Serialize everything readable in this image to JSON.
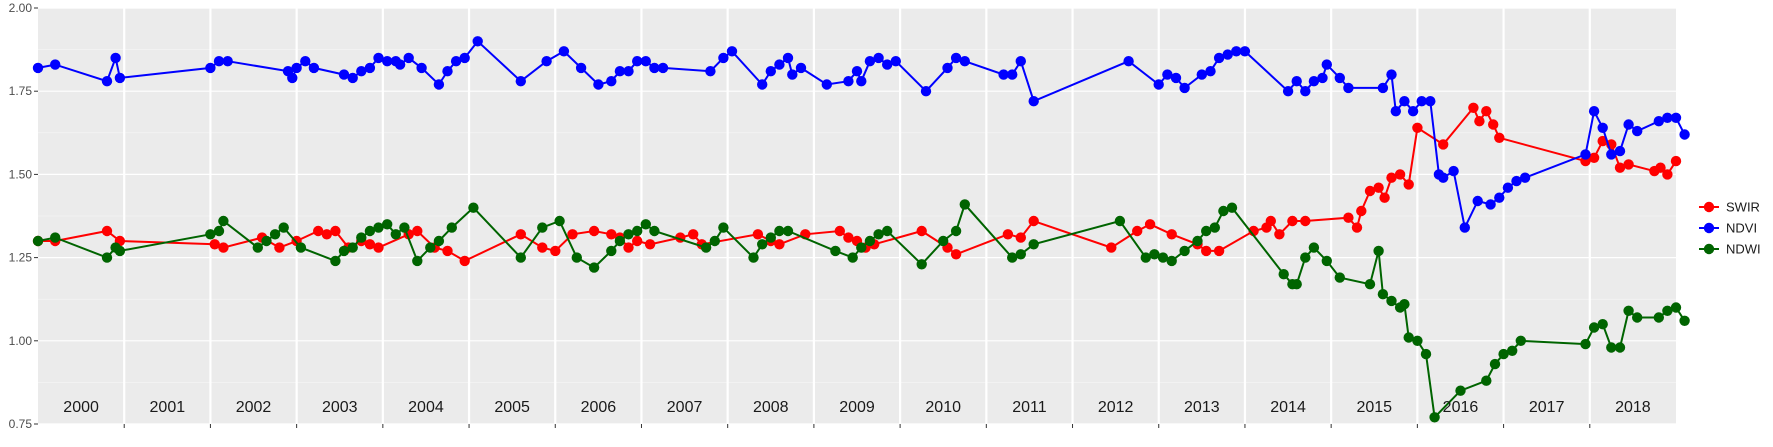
{
  "chart_data": {
    "type": "line",
    "title": "",
    "xlabel": "",
    "ylabel": "",
    "xlim": [
      2000.0,
      2019.0
    ],
    "ylim": [
      0.75,
      2.0
    ],
    "y_ticks": [
      "0.75",
      "1.00",
      "1.25",
      "1.50",
      "1.75",
      "2.00"
    ],
    "grid": true,
    "legend_position": "right",
    "years": [
      "2000",
      "2001",
      "2002",
      "2003",
      "2004",
      "2005",
      "2006",
      "2007",
      "2008",
      "2009",
      "2010",
      "2011",
      "2012",
      "2013",
      "2014",
      "2015",
      "2016",
      "2017",
      "2018"
    ],
    "series": [
      {
        "name": "SWIR",
        "color": "#ff0000",
        "points": [
          [
            2000.0,
            1.3
          ],
          [
            2000.2,
            1.3
          ],
          [
            2000.8,
            1.33
          ],
          [
            2000.95,
            1.3
          ],
          [
            2002.05,
            1.29
          ],
          [
            2002.15,
            1.28
          ],
          [
            2002.6,
            1.31
          ],
          [
            2002.8,
            1.28
          ],
          [
            2003.0,
            1.3
          ],
          [
            2003.25,
            1.33
          ],
          [
            2003.35,
            1.32
          ],
          [
            2003.45,
            1.33
          ],
          [
            2003.6,
            1.28
          ],
          [
            2003.75,
            1.3
          ],
          [
            2003.85,
            1.29
          ],
          [
            2003.95,
            1.28
          ],
          [
            2004.3,
            1.32
          ],
          [
            2004.4,
            1.33
          ],
          [
            2004.6,
            1.28
          ],
          [
            2004.75,
            1.27
          ],
          [
            2004.95,
            1.24
          ],
          [
            2005.6,
            1.32
          ],
          [
            2005.85,
            1.28
          ],
          [
            2006.0,
            1.27
          ],
          [
            2006.2,
            1.32
          ],
          [
            2006.45,
            1.33
          ],
          [
            2006.65,
            1.32
          ],
          [
            2006.75,
            1.31
          ],
          [
            2006.85,
            1.28
          ],
          [
            2006.95,
            1.3
          ],
          [
            2007.1,
            1.29
          ],
          [
            2007.45,
            1.31
          ],
          [
            2007.6,
            1.32
          ],
          [
            2007.7,
            1.29
          ],
          [
            2008.35,
            1.32
          ],
          [
            2008.5,
            1.3
          ],
          [
            2008.6,
            1.29
          ],
          [
            2008.9,
            1.32
          ],
          [
            2009.3,
            1.33
          ],
          [
            2009.4,
            1.31
          ],
          [
            2009.5,
            1.3
          ],
          [
            2009.6,
            1.28
          ],
          [
            2009.7,
            1.29
          ],
          [
            2010.25,
            1.33
          ],
          [
            2010.55,
            1.28
          ],
          [
            2010.65,
            1.26
          ],
          [
            2011.25,
            1.32
          ],
          [
            2011.4,
            1.31
          ],
          [
            2011.55,
            1.36
          ],
          [
            2012.45,
            1.28
          ],
          [
            2012.75,
            1.33
          ],
          [
            2012.9,
            1.35
          ],
          [
            2013.15,
            1.32
          ],
          [
            2013.45,
            1.29
          ],
          [
            2013.55,
            1.27
          ],
          [
            2013.7,
            1.27
          ],
          [
            2014.1,
            1.33
          ],
          [
            2014.25,
            1.34
          ],
          [
            2014.3,
            1.36
          ],
          [
            2014.4,
            1.32
          ],
          [
            2014.55,
            1.36
          ],
          [
            2014.7,
            1.36
          ],
          [
            2015.2,
            1.37
          ],
          [
            2015.3,
            1.34
          ],
          [
            2015.35,
            1.39
          ],
          [
            2015.45,
            1.45
          ],
          [
            2015.55,
            1.46
          ],
          [
            2015.62,
            1.43
          ],
          [
            2015.7,
            1.49
          ],
          [
            2015.8,
            1.5
          ],
          [
            2015.9,
            1.47
          ],
          [
            2016.0,
            1.64
          ],
          [
            2016.3,
            1.59
          ],
          [
            2016.65,
            1.7
          ],
          [
            2016.72,
            1.66
          ],
          [
            2016.8,
            1.69
          ],
          [
            2016.88,
            1.65
          ],
          [
            2016.95,
            1.61
          ],
          [
            2017.95,
            1.54
          ],
          [
            2018.05,
            1.55
          ],
          [
            2018.15,
            1.6
          ],
          [
            2018.25,
            1.59
          ],
          [
            2018.35,
            1.52
          ],
          [
            2018.45,
            1.53
          ],
          [
            2018.75,
            1.51
          ],
          [
            2018.82,
            1.52
          ],
          [
            2018.9,
            1.5
          ],
          [
            2019.0,
            1.54
          ]
        ]
      },
      {
        "name": "NDVI",
        "color": "#0000ff",
        "points": [
          [
            2000.0,
            1.82
          ],
          [
            2000.2,
            1.83
          ],
          [
            2000.8,
            1.78
          ],
          [
            2000.9,
            1.85
          ],
          [
            2000.95,
            1.79
          ],
          [
            2002.0,
            1.82
          ],
          [
            2002.1,
            1.84
          ],
          [
            2002.2,
            1.84
          ],
          [
            2002.9,
            1.81
          ],
          [
            2002.95,
            1.79
          ],
          [
            2003.0,
            1.82
          ],
          [
            2003.1,
            1.84
          ],
          [
            2003.2,
            1.82
          ],
          [
            2003.55,
            1.8
          ],
          [
            2003.65,
            1.79
          ],
          [
            2003.75,
            1.81
          ],
          [
            2003.85,
            1.82
          ],
          [
            2003.95,
            1.85
          ],
          [
            2004.05,
            1.84
          ],
          [
            2004.15,
            1.84
          ],
          [
            2004.2,
            1.83
          ],
          [
            2004.3,
            1.85
          ],
          [
            2004.45,
            1.82
          ],
          [
            2004.65,
            1.77
          ],
          [
            2004.75,
            1.81
          ],
          [
            2004.85,
            1.84
          ],
          [
            2004.95,
            1.85
          ],
          [
            2005.1,
            1.9
          ],
          [
            2005.6,
            1.78
          ],
          [
            2005.9,
            1.84
          ],
          [
            2006.1,
            1.87
          ],
          [
            2006.3,
            1.82
          ],
          [
            2006.5,
            1.77
          ],
          [
            2006.65,
            1.78
          ],
          [
            2006.75,
            1.81
          ],
          [
            2006.85,
            1.81
          ],
          [
            2006.95,
            1.84
          ],
          [
            2007.05,
            1.84
          ],
          [
            2007.15,
            1.82
          ],
          [
            2007.25,
            1.82
          ],
          [
            2007.8,
            1.81
          ],
          [
            2007.95,
            1.85
          ],
          [
            2008.05,
            1.87
          ],
          [
            2008.4,
            1.77
          ],
          [
            2008.5,
            1.81
          ],
          [
            2008.6,
            1.83
          ],
          [
            2008.7,
            1.85
          ],
          [
            2008.75,
            1.8
          ],
          [
            2008.85,
            1.82
          ],
          [
            2009.15,
            1.77
          ],
          [
            2009.4,
            1.78
          ],
          [
            2009.5,
            1.81
          ],
          [
            2009.55,
            1.78
          ],
          [
            2009.65,
            1.84
          ],
          [
            2009.75,
            1.85
          ],
          [
            2009.85,
            1.83
          ],
          [
            2009.95,
            1.84
          ],
          [
            2010.3,
            1.75
          ],
          [
            2010.55,
            1.82
          ],
          [
            2010.65,
            1.85
          ],
          [
            2010.75,
            1.84
          ],
          [
            2011.2,
            1.8
          ],
          [
            2011.3,
            1.8
          ],
          [
            2011.4,
            1.84
          ],
          [
            2011.55,
            1.72
          ],
          [
            2012.65,
            1.84
          ],
          [
            2013.0,
            1.77
          ],
          [
            2013.1,
            1.8
          ],
          [
            2013.2,
            1.79
          ],
          [
            2013.3,
            1.76
          ],
          [
            2013.5,
            1.8
          ],
          [
            2013.6,
            1.81
          ],
          [
            2013.7,
            1.85
          ],
          [
            2013.8,
            1.86
          ],
          [
            2013.9,
            1.87
          ],
          [
            2014.0,
            1.87
          ],
          [
            2014.5,
            1.75
          ],
          [
            2014.6,
            1.78
          ],
          [
            2014.7,
            1.75
          ],
          [
            2014.8,
            1.78
          ],
          [
            2014.9,
            1.79
          ],
          [
            2014.95,
            1.83
          ],
          [
            2015.1,
            1.79
          ],
          [
            2015.2,
            1.76
          ],
          [
            2015.6,
            1.76
          ],
          [
            2015.7,
            1.8
          ],
          [
            2015.75,
            1.69
          ],
          [
            2015.85,
            1.72
          ],
          [
            2015.95,
            1.69
          ],
          [
            2016.05,
            1.72
          ],
          [
            2016.15,
            1.72
          ],
          [
            2016.25,
            1.5
          ],
          [
            2016.3,
            1.49
          ],
          [
            2016.42,
            1.51
          ],
          [
            2016.55,
            1.34
          ],
          [
            2016.7,
            1.42
          ],
          [
            2016.85,
            1.41
          ],
          [
            2016.95,
            1.43
          ],
          [
            2017.05,
            1.46
          ],
          [
            2017.15,
            1.48
          ],
          [
            2017.25,
            1.49
          ],
          [
            2017.95,
            1.56
          ],
          [
            2018.05,
            1.69
          ],
          [
            2018.15,
            1.64
          ],
          [
            2018.25,
            1.56
          ],
          [
            2018.35,
            1.57
          ],
          [
            2018.45,
            1.65
          ],
          [
            2018.55,
            1.63
          ],
          [
            2018.8,
            1.66
          ],
          [
            2018.9,
            1.67
          ],
          [
            2019.0,
            1.67
          ],
          [
            2019.1,
            1.62
          ]
        ]
      },
      {
        "name": "NDWI",
        "color": "#006400",
        "points": [
          [
            2000.0,
            1.3
          ],
          [
            2000.2,
            1.31
          ],
          [
            2000.8,
            1.25
          ],
          [
            2000.9,
            1.28
          ],
          [
            2000.95,
            1.27
          ],
          [
            2002.0,
            1.32
          ],
          [
            2002.1,
            1.33
          ],
          [
            2002.15,
            1.36
          ],
          [
            2002.55,
            1.28
          ],
          [
            2002.65,
            1.3
          ],
          [
            2002.75,
            1.32
          ],
          [
            2002.85,
            1.34
          ],
          [
            2003.05,
            1.28
          ],
          [
            2003.45,
            1.24
          ],
          [
            2003.55,
            1.27
          ],
          [
            2003.65,
            1.28
          ],
          [
            2003.75,
            1.31
          ],
          [
            2003.85,
            1.33
          ],
          [
            2003.95,
            1.34
          ],
          [
            2004.05,
            1.35
          ],
          [
            2004.15,
            1.32
          ],
          [
            2004.25,
            1.34
          ],
          [
            2004.4,
            1.24
          ],
          [
            2004.55,
            1.28
          ],
          [
            2004.65,
            1.3
          ],
          [
            2004.8,
            1.34
          ],
          [
            2005.05,
            1.4
          ],
          [
            2005.6,
            1.25
          ],
          [
            2005.85,
            1.34
          ],
          [
            2006.05,
            1.36
          ],
          [
            2006.25,
            1.25
          ],
          [
            2006.45,
            1.22
          ],
          [
            2006.65,
            1.27
          ],
          [
            2006.75,
            1.3
          ],
          [
            2006.85,
            1.32
          ],
          [
            2006.95,
            1.33
          ],
          [
            2007.05,
            1.35
          ],
          [
            2007.15,
            1.33
          ],
          [
            2007.75,
            1.28
          ],
          [
            2007.85,
            1.3
          ],
          [
            2007.95,
            1.34
          ],
          [
            2008.3,
            1.25
          ],
          [
            2008.4,
            1.29
          ],
          [
            2008.5,
            1.31
          ],
          [
            2008.6,
            1.33
          ],
          [
            2008.7,
            1.33
          ],
          [
            2009.25,
            1.27
          ],
          [
            2009.45,
            1.25
          ],
          [
            2009.55,
            1.28
          ],
          [
            2009.65,
            1.3
          ],
          [
            2009.75,
            1.32
          ],
          [
            2009.85,
            1.33
          ],
          [
            2010.25,
            1.23
          ],
          [
            2010.5,
            1.3
          ],
          [
            2010.65,
            1.33
          ],
          [
            2010.75,
            1.41
          ],
          [
            2011.3,
            1.25
          ],
          [
            2011.4,
            1.26
          ],
          [
            2011.55,
            1.29
          ],
          [
            2012.55,
            1.36
          ],
          [
            2012.85,
            1.25
          ],
          [
            2012.95,
            1.26
          ],
          [
            2013.05,
            1.25
          ],
          [
            2013.15,
            1.24
          ],
          [
            2013.3,
            1.27
          ],
          [
            2013.45,
            1.3
          ],
          [
            2013.55,
            1.33
          ],
          [
            2013.65,
            1.34
          ],
          [
            2013.75,
            1.39
          ],
          [
            2013.85,
            1.4
          ],
          [
            2014.45,
            1.2
          ],
          [
            2014.55,
            1.17
          ],
          [
            2014.6,
            1.17
          ],
          [
            2014.7,
            1.25
          ],
          [
            2014.8,
            1.28
          ],
          [
            2014.95,
            1.24
          ],
          [
            2015.1,
            1.19
          ],
          [
            2015.45,
            1.17
          ],
          [
            2015.55,
            1.27
          ],
          [
            2015.6,
            1.14
          ],
          [
            2015.7,
            1.12
          ],
          [
            2015.8,
            1.1
          ],
          [
            2015.85,
            1.11
          ],
          [
            2015.9,
            1.01
          ],
          [
            2016.0,
            1.0
          ],
          [
            2016.1,
            0.96
          ],
          [
            2016.2,
            0.77
          ],
          [
            2016.5,
            0.85
          ],
          [
            2016.8,
            0.88
          ],
          [
            2016.9,
            0.93
          ],
          [
            2017.0,
            0.96
          ],
          [
            2017.1,
            0.97
          ],
          [
            2017.2,
            1.0
          ],
          [
            2017.95,
            0.99
          ],
          [
            2018.05,
            1.04
          ],
          [
            2018.15,
            1.05
          ],
          [
            2018.25,
            0.98
          ],
          [
            2018.35,
            0.98
          ],
          [
            2018.45,
            1.09
          ],
          [
            2018.55,
            1.07
          ],
          [
            2018.8,
            1.07
          ],
          [
            2018.9,
            1.09
          ],
          [
            2019.0,
            1.1
          ],
          [
            2019.1,
            1.06
          ]
        ]
      }
    ]
  }
}
